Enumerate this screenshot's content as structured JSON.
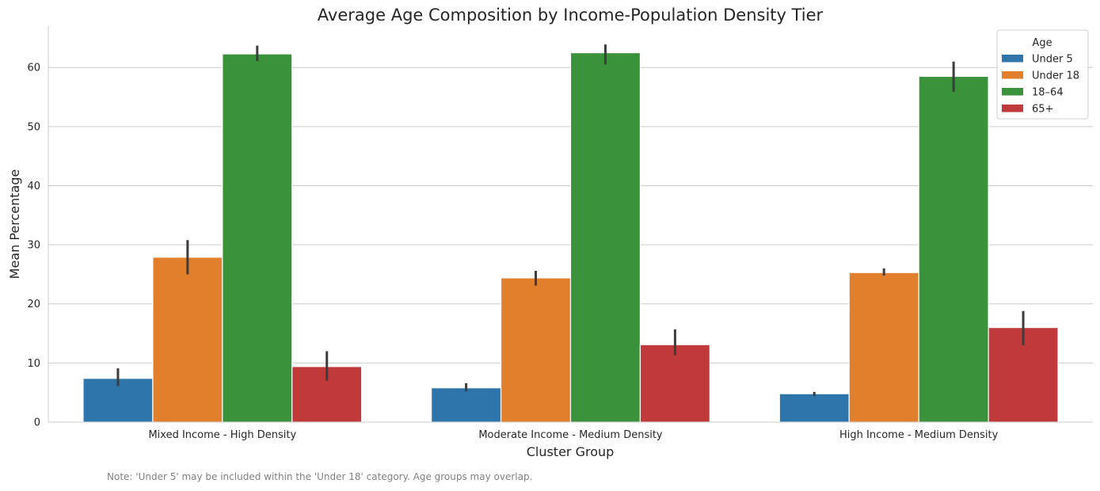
{
  "chart_data": {
    "type": "bar",
    "title": "Average Age Composition by Income-Population Density Tier",
    "xlabel": "Cluster Group",
    "ylabel": "Mean Percentage",
    "categories": [
      "Mixed Income - High Density",
      "Moderate Income - Medium Density",
      "High Income - Medium Density"
    ],
    "ylim": [
      0,
      67
    ],
    "yticks": [
      0,
      10,
      20,
      30,
      40,
      50,
      60
    ],
    "grid": "horizontal",
    "legend": {
      "title": "Age",
      "position": "top-right"
    },
    "series": [
      {
        "name": "Under 5",
        "color": "#2e75ab",
        "values": [
          7.4,
          5.8,
          4.8
        ],
        "error_low": [
          6.1,
          5.2,
          4.4
        ],
        "error_high": [
          9.1,
          6.6,
          5.1
        ]
      },
      {
        "name": "Under 18",
        "color": "#e17f2c",
        "values": [
          27.9,
          24.4,
          25.3
        ],
        "error_low": [
          25.0,
          23.1,
          24.8
        ],
        "error_high": [
          30.8,
          25.6,
          26.0
        ]
      },
      {
        "name": "18–64",
        "color": "#3a923a",
        "values": [
          62.3,
          62.5,
          58.5
        ],
        "error_low": [
          61.1,
          60.5,
          55.9
        ],
        "error_high": [
          63.7,
          63.9,
          61.0
        ]
      },
      {
        "name": "65+",
        "color": "#c03a3b",
        "values": [
          9.4,
          13.1,
          16.0
        ],
        "error_low": [
          7.0,
          11.3,
          13.0
        ],
        "error_high": [
          12.0,
          15.7,
          18.8
        ]
      }
    ]
  },
  "note": "Note: 'Under 5' may be included within the 'Under 18' category. Age groups may overlap."
}
